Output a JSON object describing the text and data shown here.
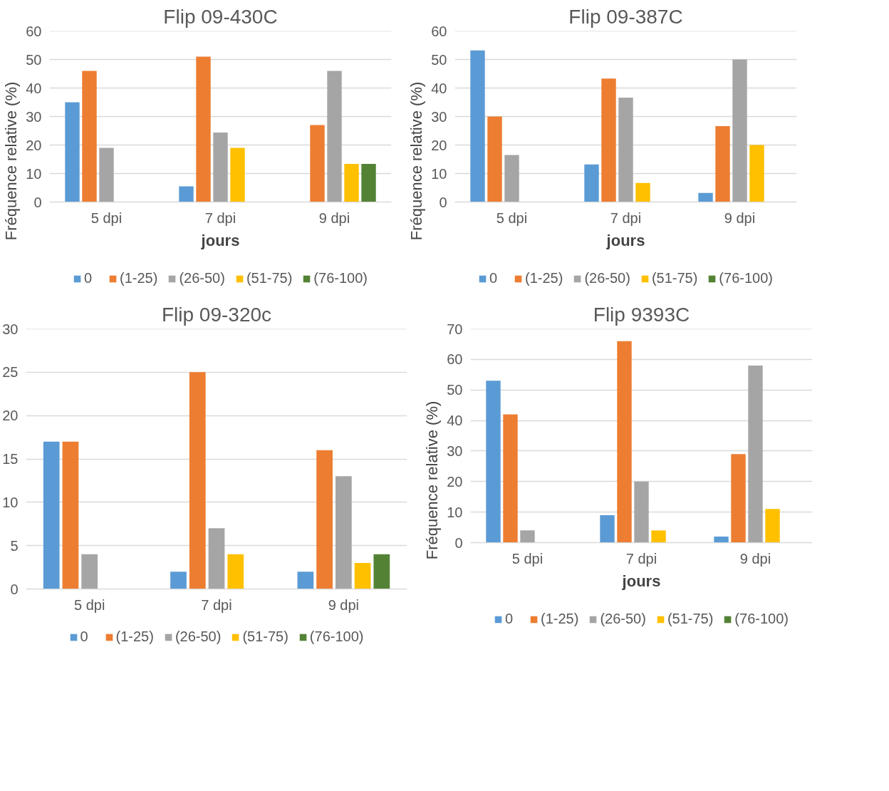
{
  "chart_data": [
    {
      "type": "bar",
      "title": "Flip 09-430C",
      "xlabel": "jours",
      "ylabel": "Fréquence relative (%)",
      "categories": [
        "5 dpi",
        "7 dpi",
        "9 dpi"
      ],
      "ylim": [
        0,
        60
      ],
      "yticks": [
        0,
        10,
        20,
        30,
        40,
        50,
        60
      ],
      "grid": "y",
      "legend": "bottom",
      "series": [
        {
          "name": "0",
          "color": "#5b9bd5",
          "values": [
            35,
            5.5,
            0
          ]
        },
        {
          "name": "(1-25)",
          "color": "#ed7d31",
          "values": [
            46,
            51,
            27
          ]
        },
        {
          "name": "(26-50)",
          "color": "#a5a5a5",
          "values": [
            19,
            24.4,
            46
          ]
        },
        {
          "name": "(51-75)",
          "color": "#ffc000",
          "values": [
            0,
            19,
            13.4
          ]
        },
        {
          "name": "(76-100)",
          "color": "#548235",
          "values": [
            0,
            0,
            13.4
          ]
        }
      ]
    },
    {
      "type": "bar",
      "title": "Flip 09-387C",
      "xlabel": "jours",
      "ylabel": "Fréquence relative (%)",
      "categories": [
        "5 dpi",
        "7 dpi",
        "9 dpi"
      ],
      "ylim": [
        0,
        60
      ],
      "yticks": [
        0,
        10,
        20,
        30,
        40,
        50,
        60
      ],
      "grid": "y",
      "legend": "bottom",
      "series": [
        {
          "name": "0",
          "color": "#5b9bd5",
          "values": [
            53.2,
            13.2,
            3.2
          ]
        },
        {
          "name": "(1-25)",
          "color": "#ed7d31",
          "values": [
            30,
            43.3,
            26.6
          ]
        },
        {
          "name": "(26-50)",
          "color": "#a5a5a5",
          "values": [
            16.5,
            36.6,
            50
          ]
        },
        {
          "name": "(51-75)",
          "color": "#ffc000",
          "values": [
            0,
            6.7,
            20
          ]
        },
        {
          "name": "(76-100)",
          "color": "#548235",
          "values": [
            0,
            0,
            0
          ]
        }
      ]
    },
    {
      "type": "bar",
      "title": "Flip 09-320c",
      "categories": [
        "5 dpi",
        "7 dpi",
        "9 dpi"
      ],
      "ylim": [
        0,
        30
      ],
      "yticks": [
        0,
        5,
        10,
        15,
        20,
        25,
        30
      ],
      "grid": "y",
      "legend": "bottom",
      "series": [
        {
          "name": "0",
          "color": "#5b9bd5",
          "values": [
            17,
            2,
            2
          ]
        },
        {
          "name": "(1-25)",
          "color": "#ed7d31",
          "values": [
            17,
            25,
            16
          ]
        },
        {
          "name": "(26-50)",
          "color": "#a5a5a5",
          "values": [
            4,
            7,
            13
          ]
        },
        {
          "name": "(51-75)",
          "color": "#ffc000",
          "values": [
            0,
            4,
            3
          ]
        },
        {
          "name": "(76-100)",
          "color": "#548235",
          "values": [
            0,
            0,
            4
          ]
        }
      ]
    },
    {
      "type": "bar",
      "title": "Flip 9393C",
      "xlabel": "jours",
      "ylabel": "Fréquence relative (%)",
      "categories": [
        "5 dpi",
        "7 dpi",
        "9 dpi"
      ],
      "ylim": [
        0,
        70
      ],
      "yticks": [
        0,
        10,
        20,
        30,
        40,
        50,
        60,
        70
      ],
      "grid": "y",
      "legend": "bottom",
      "series": [
        {
          "name": "0",
          "color": "#5b9bd5",
          "values": [
            53,
            9,
            2
          ]
        },
        {
          "name": "(1-25)",
          "color": "#ed7d31",
          "values": [
            42,
            66,
            29
          ]
        },
        {
          "name": "(26-50)",
          "color": "#a5a5a5",
          "values": [
            4,
            20,
            58
          ]
        },
        {
          "name": "(51-75)",
          "color": "#ffc000",
          "values": [
            0,
            4,
            11
          ]
        },
        {
          "name": "(76-100)",
          "color": "#548235",
          "values": [
            0,
            0,
            0
          ]
        }
      ]
    }
  ]
}
